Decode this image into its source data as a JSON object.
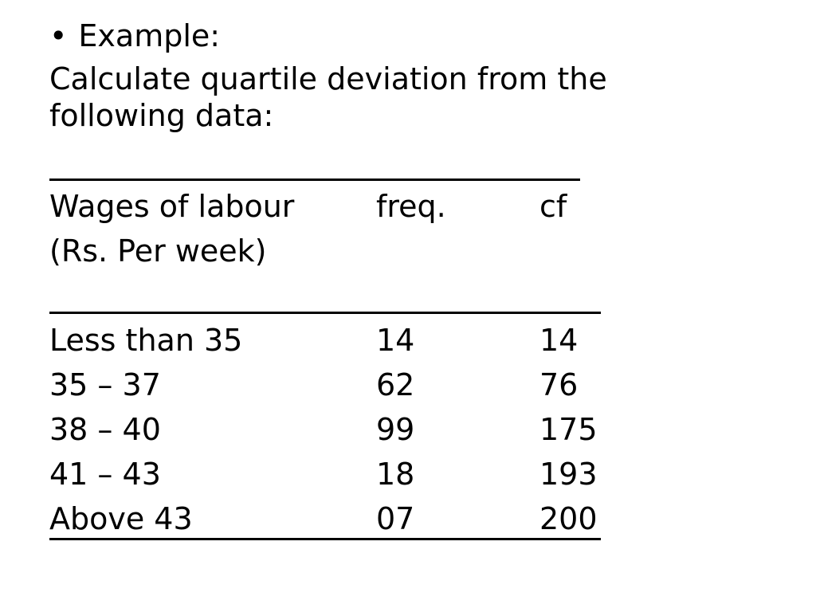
{
  "bullet": {
    "marker": "•",
    "text": "Example:"
  },
  "intro": {
    "line1": "Calculate quartile deviation from the",
    "line2": "following data:"
  },
  "table": {
    "header": {
      "col1_line1": "Wages of labour",
      "col1_line2": "(Rs. Per week)",
      "col2": "freq.",
      "col3": "cf"
    },
    "rows": [
      {
        "wages": "Less than 35",
        "freq": "14",
        "cf": "14"
      },
      {
        "wages": "35 – 37",
        "freq": "62",
        "cf": "76"
      },
      {
        "wages": "38 – 40",
        "freq": "99",
        "cf": "175"
      },
      {
        "wages": "41 – 43",
        "freq": "18",
        "cf": "193"
      },
      {
        "wages": "Above 43",
        "freq": "07",
        "cf": "200"
      }
    ]
  }
}
